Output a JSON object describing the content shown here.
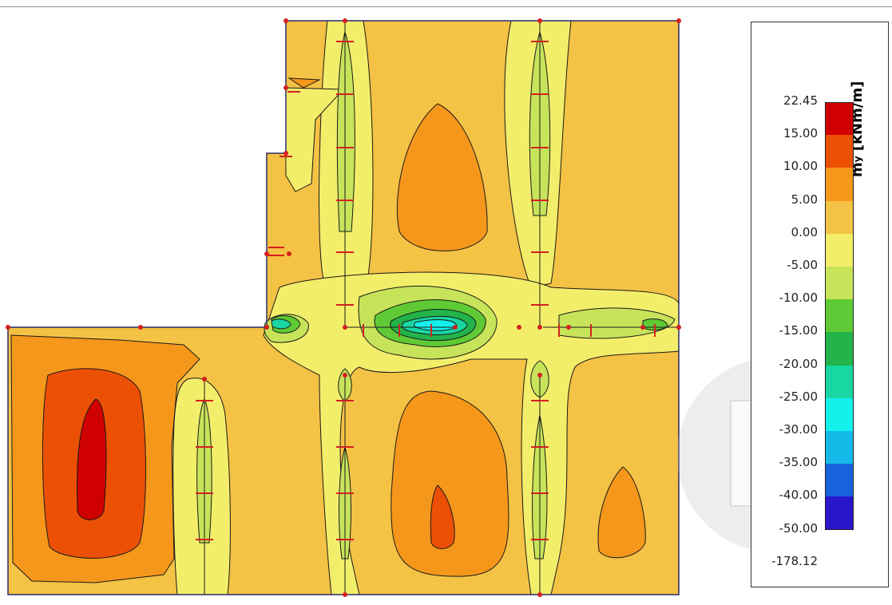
{
  "legend": {
    "title": "m",
    "title_subscript": "y",
    "title_unit": " [kNm/m]",
    "levels": [
      "22.45",
      "15.00",
      "10.00",
      "5.00",
      "0.00",
      "-5.00",
      "-10.00",
      "-15.00",
      "-20.00",
      "-25.00",
      "-30.00",
      "-35.00",
      "-40.00",
      "-50.00",
      "-178.12"
    ],
    "colors": [
      "#d10000",
      "#ec5005",
      "#f5971a",
      "#f4c244",
      "#f3ee6a",
      "#c7e35a",
      "#5fca35",
      "#22b44a",
      "#18d7a2",
      "#14f0ec",
      "#14b9e8",
      "#1863dd",
      "#2a16c9"
    ]
  },
  "plot": {
    "background_color": "#f4c244",
    "contour_line_color": "#1a1a1a",
    "support_color": "#d42020",
    "edge_color": "#2c2c6a"
  },
  "nav_cube": {
    "icon": "view-orientation-compass-icon"
  }
}
